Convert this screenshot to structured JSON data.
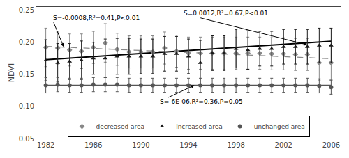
{
  "chart_data": {
    "type": "scatter",
    "ylabel": "NDVI",
    "x": [
      1982,
      1983,
      1984,
      1985,
      1986,
      1987,
      1988,
      1989,
      1990,
      1991,
      1992,
      1993,
      1994,
      1995,
      1996,
      1997,
      1998,
      1999,
      2000,
      2001,
      2002,
      2003,
      2004,
      2005,
      2006
    ],
    "xlim": [
      1981.2,
      2006.8
    ],
    "xticks": [
      1982,
      1986,
      1990,
      1994,
      1998,
      2002,
      2006
    ],
    "ylim": [
      0.05,
      0.255
    ],
    "yticks": [
      0.05,
      {
        "value": 0.1,
        "label": "0.10"
      },
      0.15,
      {
        "value": 0.2,
        "label": "0.20"
      },
      0.25
    ],
    "grid": false,
    "legend": "lower center",
    "series": [
      {
        "name": "decreased area",
        "color": "#888888",
        "marker": "diamond",
        "values": [
          0.192,
          0.191,
          0.188,
          0.186,
          0.192,
          0.199,
          0.189,
          0.185,
          0.185,
          0.185,
          0.191,
          0.186,
          0.183,
          0.183,
          0.183,
          0.183,
          0.183,
          0.183,
          0.183,
          0.182,
          0.182,
          0.181,
          0.181,
          0.168,
          0.168
        ],
        "errors": [
          0.03,
          0.025,
          0.025,
          0.027,
          0.025,
          0.03,
          0.025,
          0.025,
          0.025,
          0.025,
          0.025,
          0.025,
          0.025,
          0.025,
          0.025,
          0.025,
          0.025,
          0.025,
          0.025,
          0.025,
          0.025,
          0.025,
          0.025,
          0.027,
          0.027
        ],
        "trend": {
          "x": [
            1982,
            2006
          ],
          "values": [
            0.1936,
            0.1744
          ],
          "color": "#888888",
          "line_style": "dash"
        }
      },
      {
        "name": "increased area",
        "color": "#1a1a1a",
        "marker": "triangle-up",
        "values": [
          0.172,
          0.168,
          0.17,
          0.172,
          0.175,
          0.175,
          0.178,
          0.178,
          0.178,
          0.178,
          0.182,
          0.182,
          0.178,
          0.168,
          0.183,
          0.183,
          0.19,
          0.188,
          0.19,
          0.19,
          0.193,
          0.193,
          0.193,
          0.195,
          0.195
        ],
        "errors": [
          0.032,
          0.03,
          0.028,
          0.03,
          0.025,
          0.03,
          0.028,
          0.028,
          0.027,
          0.027,
          0.027,
          0.027,
          0.027,
          0.035,
          0.027,
          0.027,
          0.03,
          0.03,
          0.027,
          0.027,
          0.027,
          0.027,
          0.027,
          0.027,
          0.027
        ],
        "trend": {
          "x": [
            1982,
            2006
          ],
          "values": [
            0.1728,
            0.2016
          ],
          "color": "#000000",
          "line_style": "solid"
        }
      },
      {
        "name": "unchanged area",
        "color": "#555555",
        "marker": "circle",
        "values": [
          0.133,
          0.134,
          0.133,
          0.133,
          0.134,
          0.134,
          0.134,
          0.133,
          0.133,
          0.133,
          0.133,
          0.133,
          0.133,
          0.133,
          0.133,
          0.133,
          0.133,
          0.133,
          0.133,
          0.133,
          0.133,
          0.133,
          0.133,
          0.132,
          0.13
        ],
        "errors": [
          0.012,
          0.011,
          0.011,
          0.011,
          0.011,
          0.011,
          0.011,
          0.011,
          0.011,
          0.011,
          0.011,
          0.011,
          0.011,
          0.011,
          0.011,
          0.011,
          0.011,
          0.011,
          0.011,
          0.011,
          0.011,
          0.011,
          0.011,
          0.011,
          0.011
        ],
        "trend": {
          "x": [
            1982,
            2006
          ],
          "values": [
            0.133108,
            0.132964
          ],
          "color": "#555555",
          "line_style": "solid"
        }
      }
    ],
    "annotations": [
      {
        "text": "S=-0.0008,R²=0.41,P<0.01",
        "x": 1983.5,
        "y": 0.193,
        "text_x": 1982.5,
        "text_y": 0.238
      },
      {
        "text": "S=0.0012,R²=0.67,P<0.01",
        "x": 2004.0,
        "y": 0.196,
        "text_x": 1993.5,
        "text_y": 0.245
      },
      {
        "text": "S=-6E-06,R²=0.36,P=0.05",
        "x": 1994.5,
        "y": 0.133,
        "text_x": 1991.5,
        "text_y": 0.107
      }
    ]
  }
}
